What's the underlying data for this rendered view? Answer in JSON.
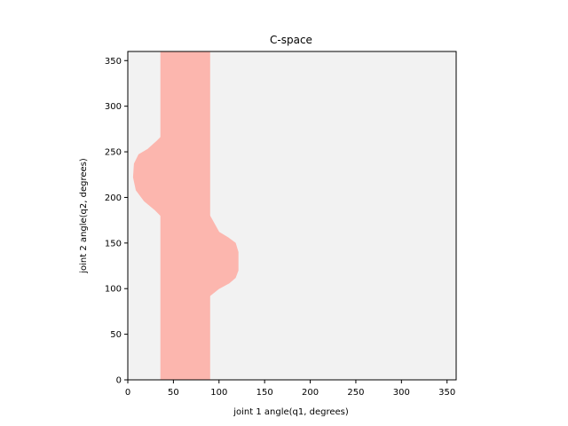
{
  "chart_data": {
    "type": "heatmap",
    "title": "C-space",
    "xlabel": "joint 1 angle(q1, degrees)",
    "ylabel": "joint 2 angle(q2, degrees)",
    "xlim": [
      0,
      360
    ],
    "ylim": [
      0,
      360
    ],
    "x_ticks": [
      0,
      50,
      100,
      150,
      200,
      250,
      300,
      350
    ],
    "y_ticks": [
      0,
      50,
      100,
      150,
      200,
      250,
      300,
      350
    ],
    "grid": false,
    "colors": {
      "free_space": "#f2f2f2",
      "obstacle": "#fcb6ae",
      "axes_edge": "#000000"
    },
    "obstacle_regions": [
      {
        "name": "vertical band",
        "polygon": [
          [
            36,
            0
          ],
          [
            90,
            0
          ],
          [
            90,
            360
          ],
          [
            36,
            360
          ]
        ]
      },
      {
        "name": "left lobe",
        "polygon": [
          [
            36,
            180
          ],
          [
            30,
            186
          ],
          [
            18,
            196
          ],
          [
            9,
            208
          ],
          [
            6,
            222
          ],
          [
            7,
            237
          ],
          [
            12,
            247
          ],
          [
            22,
            253
          ],
          [
            32,
            262
          ],
          [
            36,
            266
          ]
        ]
      },
      {
        "name": "right lobe",
        "polygon": [
          [
            90,
            92
          ],
          [
            100,
            100
          ],
          [
            111,
            106
          ],
          [
            118,
            112
          ],
          [
            121,
            120
          ],
          [
            121,
            140
          ],
          [
            118,
            150
          ],
          [
            110,
            156
          ],
          [
            100,
            162
          ],
          [
            90,
            180
          ]
        ]
      }
    ]
  }
}
